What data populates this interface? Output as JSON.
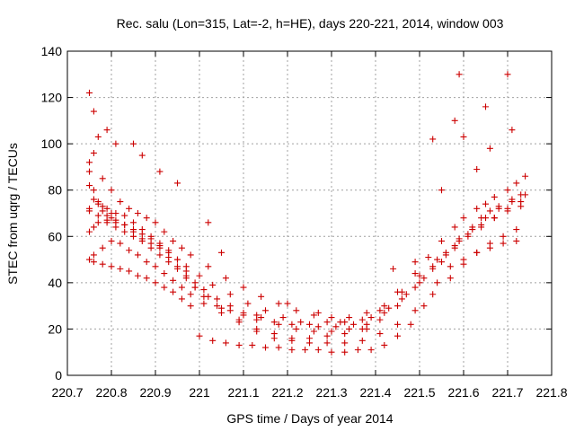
{
  "chart_data": {
    "type": "scatter",
    "title": "Rec. salu (Lon=315, Lat=-2, h=HE), days 220-221, 2014, window 003",
    "xlabel": "GPS time / Days of year 2014",
    "ylabel": "STEC from uqrg / TECUs",
    "xlim": [
      220.7,
      221.8
    ],
    "ylim": [
      0,
      140
    ],
    "xticks": [
      220.7,
      220.8,
      220.9,
      221,
      221.1,
      221.2,
      221.3,
      221.4,
      221.5,
      221.6,
      221.7,
      221.8
    ],
    "xtick_labels": [
      "220.7",
      "220.8",
      "220.9",
      "221",
      "221.1",
      "221.2",
      "221.3",
      "221.4",
      "221.5",
      "221.6",
      "221.7",
      "221.8"
    ],
    "yticks": [
      0,
      20,
      40,
      60,
      80,
      100,
      120,
      140
    ],
    "ytick_labels": [
      "0",
      "20",
      "40",
      "60",
      "80",
      "100",
      "120",
      "140"
    ],
    "grid": true,
    "marker": "plus",
    "color": "#cc0000",
    "series": [
      {
        "x": [
          220.75,
          220.75,
          220.75,
          220.76,
          220.77,
          220.78,
          220.79,
          220.8,
          220.81,
          220.83,
          220.85,
          220.87,
          220.89,
          220.91,
          220.93,
          220.95,
          220.97,
          220.99,
          221.01,
          221.04,
          221.07,
          221.1,
          221.14,
          221.18,
          221.22,
          221.26,
          221.3,
          221.34,
          221.38,
          221.42,
          221.46,
          221.5,
          221.53,
          221.56,
          221.59,
          221.62,
          221.64,
          221.66,
          221.68,
          221.71,
          221.73,
          220.75,
          220.76,
          220.77,
          220.78,
          220.79,
          220.8,
          220.81,
          220.83,
          220.85,
          220.87,
          220.89,
          220.91,
          220.93,
          220.95,
          220.97,
          220.99,
          221.01,
          221.04,
          221.07,
          221.1,
          221.13,
          221.17,
          221.21,
          221.25,
          221.29,
          221.33,
          221.37,
          221.41,
          221.45,
          221.49,
          221.52,
          221.55,
          221.58,
          221.6,
          221.63,
          221.65,
          221.67,
          221.7,
          221.72,
          221.74,
          220.75,
          220.76,
          220.77,
          220.79,
          220.81,
          220.83,
          220.85,
          220.87,
          220.89,
          220.91,
          220.93,
          220.95,
          220.97,
          220.99,
          221.02,
          221.05,
          221.09,
          221.13,
          221.17,
          221.21,
          221.25,
          221.29,
          221.33,
          221.37,
          221.41,
          221.45,
          221.49,
          221.53,
          221.56,
          221.59,
          221.62,
          221.65,
          221.68,
          221.71,
          221.74,
          220.75,
          220.76,
          220.78,
          220.8,
          220.82,
          220.84,
          220.86,
          220.88,
          220.9,
          220.92,
          220.94,
          220.96,
          220.98,
          221.01,
          221.05,
          221.09,
          221.13,
          221.17,
          221.21,
          221.25,
          221.29,
          221.33,
          221.37,
          221.41,
          221.45,
          221.49,
          221.53,
          221.57,
          221.6,
          221.63,
          221.66,
          221.69,
          221.72,
          220.76,
          220.78,
          220.8,
          220.82,
          220.84,
          220.86,
          220.88,
          220.9,
          220.92,
          220.94,
          220.96,
          220.98,
          221.02,
          221.06,
          221.1,
          221.14,
          221.18,
          221.22,
          221.26,
          221.3,
          221.34,
          221.38,
          221.42,
          221.46,
          221.5,
          221.54,
          221.58,
          221.61,
          221.64,
          221.67,
          221.7,
          221.73,
          220.75,
          220.77,
          220.79,
          220.81,
          220.83,
          220.85,
          220.87,
          220.89,
          220.91,
          220.93,
          220.95,
          220.97,
          221.0,
          221.03,
          221.07,
          221.11,
          221.15,
          221.19,
          221.23,
          221.27,
          221.31,
          221.35,
          221.39,
          221.43,
          221.47,
          221.51,
          221.55,
          221.58,
          221.61,
          221.64,
          221.67,
          221.7,
          221.73,
          220.76,
          220.78,
          220.8,
          220.82,
          220.84,
          220.86,
          220.88,
          220.9,
          220.92,
          220.94,
          220.96,
          220.98,
          221.0,
          221.03,
          221.06,
          221.09,
          221.12,
          221.15,
          221.18,
          221.21,
          221.24,
          221.27,
          221.3,
          221.33,
          221.36,
          221.39,
          221.42,
          221.45,
          221.48,
          221.51,
          221.54,
          221.57,
          221.6,
          221.63,
          221.66,
          221.69,
          221.72,
          220.75,
          220.76,
          220.77,
          220.79,
          220.81,
          220.85,
          220.87,
          220.91,
          220.95,
          221.02,
          221.05,
          221.13,
          221.2,
          221.27,
          221.32,
          221.38,
          221.44,
          221.49,
          221.53,
          221.55,
          221.58,
          221.59,
          221.6,
          221.63,
          221.65,
          221.66,
          221.7,
          221.71
        ],
        "y": [
          92,
          82,
          72,
          76,
          75,
          73,
          72,
          70,
          70,
          69,
          66,
          63,
          60,
          57,
          54,
          50,
          45,
          40,
          37,
          33,
          30,
          27,
          25,
          22,
          20,
          19,
          19,
          20,
          22,
          27,
          33,
          40,
          47,
          53,
          59,
          64,
          68,
          71,
          73,
          76,
          78,
          88,
          80,
          74,
          71,
          69,
          68,
          67,
          65,
          62,
          59,
          57,
          55,
          51,
          47,
          43,
          38,
          34,
          30,
          28,
          26,
          24,
          23,
          22,
          22,
          23,
          23,
          24,
          28,
          36,
          44,
          51,
          58,
          64,
          68,
          72,
          74,
          77,
          80,
          83,
          86,
          62,
          64,
          66,
          66,
          64,
          62,
          60,
          58,
          55,
          52,
          49,
          46,
          42,
          38,
          34,
          29,
          24,
          20,
          18,
          16,
          16,
          17,
          18,
          20,
          24,
          30,
          38,
          46,
          52,
          58,
          63,
          68,
          72,
          75,
          78,
          50,
          52,
          55,
          58,
          57,
          54,
          52,
          49,
          47,
          44,
          41,
          38,
          35,
          31,
          27,
          23,
          19,
          16,
          15,
          14,
          14,
          14,
          15,
          18,
          22,
          28,
          35,
          42,
          48,
          53,
          57,
          60,
          63,
          96,
          85,
          80,
          75,
          72,
          70,
          68,
          66,
          62,
          58,
          55,
          52,
          47,
          42,
          38,
          34,
          31,
          28,
          26,
          25,
          25,
          27,
          30,
          36,
          43,
          50,
          56,
          61,
          65,
          68,
          72,
          75,
          71,
          69,
          67,
          66,
          65,
          63,
          61,
          59,
          56,
          53,
          50,
          47,
          43,
          39,
          35,
          31,
          28,
          25,
          23,
          21,
          21,
          22,
          25,
          29,
          35,
          42,
          49,
          55,
          60,
          64,
          68,
          71,
          73,
          49,
          48,
          47,
          46,
          45,
          43,
          42,
          40,
          38,
          36,
          33,
          30,
          17,
          15,
          14,
          13,
          13,
          12,
          12,
          11,
          11,
          11,
          10,
          10,
          11,
          11,
          13,
          17,
          22,
          30,
          40,
          47,
          50,
          53,
          55,
          57,
          58,
          122,
          114,
          103,
          106,
          100,
          100,
          95,
          88,
          83,
          66,
          53,
          26,
          31,
          27,
          23,
          20,
          46,
          49,
          102,
          80,
          110,
          130,
          103,
          89,
          116,
          98,
          130,
          106
        ]
      }
    ]
  }
}
